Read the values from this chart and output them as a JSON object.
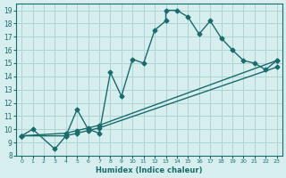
{
  "xlabel": "Humidex (Indice chaleur)",
  "bg_color": "#d6eeee",
  "grid_color": "#afd4d4",
  "line_color": "#1a6b6b",
  "xlim": [
    -0.5,
    23.5
  ],
  "ylim": [
    8,
    19.5
  ],
  "xticks": [
    0,
    1,
    2,
    3,
    4,
    5,
    6,
    7,
    8,
    9,
    10,
    11,
    12,
    13,
    14,
    15,
    16,
    17,
    18,
    19,
    20,
    21,
    22,
    23
  ],
  "yticks": [
    8,
    9,
    10,
    11,
    12,
    13,
    14,
    15,
    16,
    17,
    18,
    19
  ],
  "line1_x": [
    0,
    1,
    3,
    4,
    5,
    6,
    7,
    8,
    9,
    10,
    11,
    12,
    13,
    13,
    14,
    15,
    16,
    17,
    18,
    19,
    20,
    21,
    22,
    23
  ],
  "line1_y": [
    9.5,
    10.0,
    8.5,
    9.5,
    11.5,
    10.0,
    9.7,
    14.3,
    12.5,
    15.3,
    15.0,
    17.5,
    18.2,
    19.0,
    19.0,
    18.5,
    17.2,
    18.2,
    16.9,
    16.0,
    15.2,
    15.0,
    14.5,
    15.2
  ],
  "line2_x": [
    0,
    4,
    5,
    6,
    7,
    23
  ],
  "line2_y": [
    9.5,
    9.7,
    9.9,
    10.1,
    10.3,
    15.2
  ],
  "line3_x": [
    0,
    4,
    5,
    6,
    7,
    23
  ],
  "line3_y": [
    9.5,
    9.5,
    9.7,
    9.9,
    10.1,
    14.7
  ],
  "marker": "D",
  "markersize": 2.5,
  "linewidth": 1.0
}
